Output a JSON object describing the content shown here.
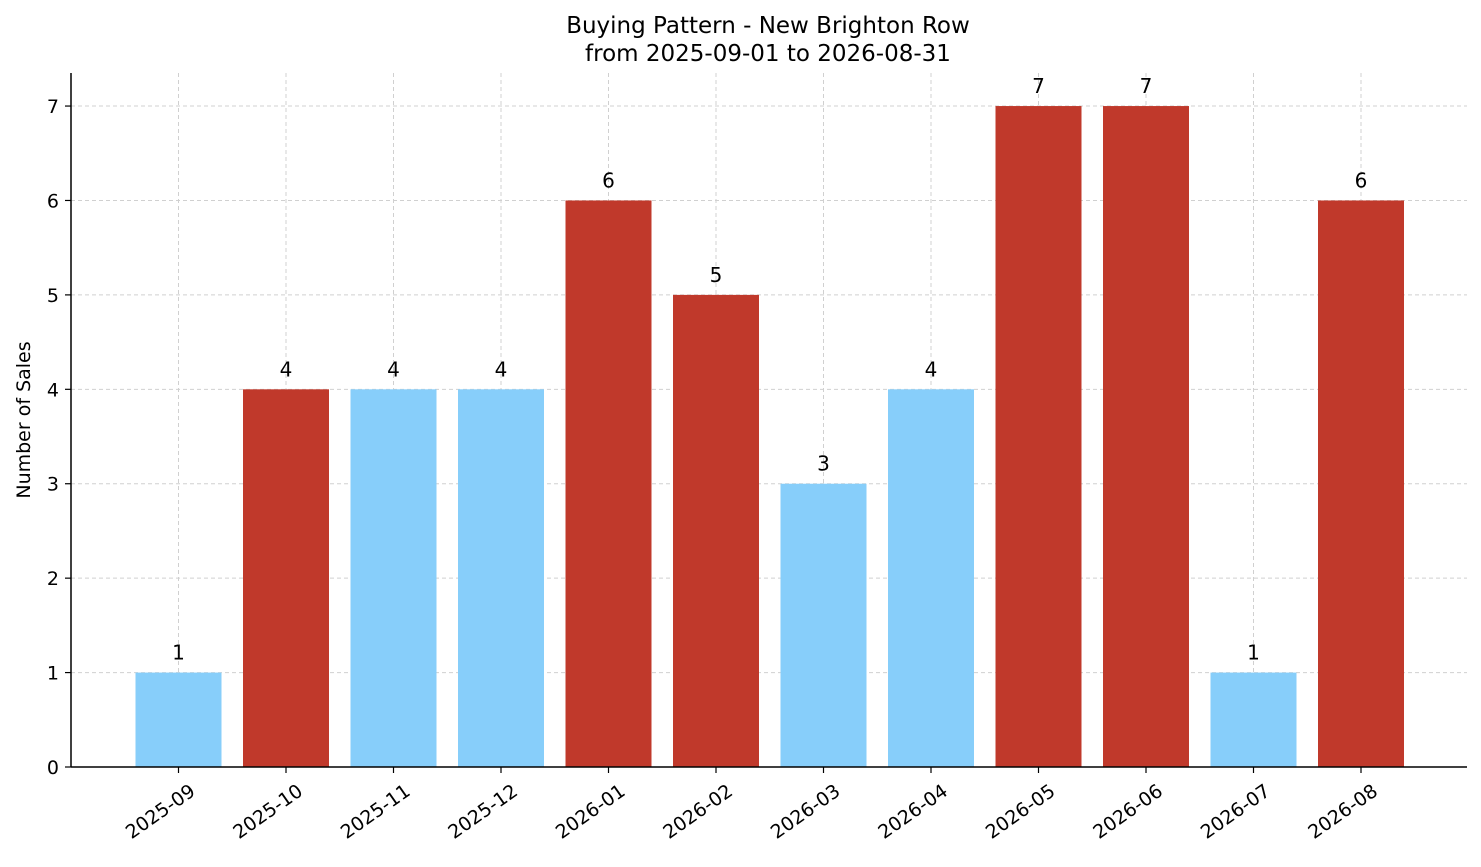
{
  "chart_data": {
    "type": "bar",
    "title": "Buying Pattern - New Brighton Row",
    "subtitle": "from 2025-09-01 to 2026-08-31",
    "xlabel": "",
    "ylabel": "Number of Sales",
    "categories": [
      "2025-09",
      "2025-10",
      "2025-11",
      "2025-12",
      "2026-01",
      "2026-02",
      "2026-03",
      "2026-04",
      "2026-05",
      "2026-06",
      "2026-07",
      "2026-08"
    ],
    "values": [
      1,
      4,
      4,
      4,
      6,
      5,
      3,
      4,
      7,
      7,
      1,
      6
    ],
    "bar_colors": [
      "#87cefa",
      "#c0392b",
      "#87cefa",
      "#87cefa",
      "#c0392b",
      "#c0392b",
      "#87cefa",
      "#87cefa",
      "#c0392b",
      "#c0392b",
      "#87cefa",
      "#c0392b"
    ],
    "y_ticks": [
      "0",
      "1",
      "2",
      "3",
      "4",
      "5",
      "6",
      "7"
    ],
    "ylim": [
      0,
      7.35
    ],
    "grid": true,
    "legend": "none"
  }
}
